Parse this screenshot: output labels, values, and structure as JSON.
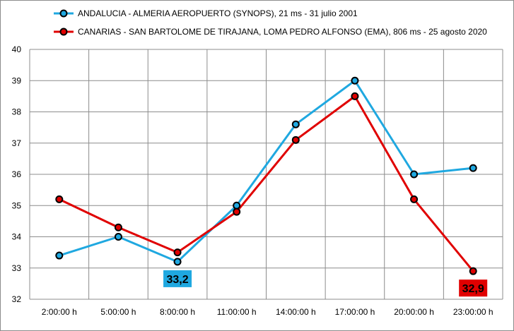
{
  "chart_data": {
    "type": "line",
    "categories": [
      "2:00:00 h",
      "5:00:00 h",
      "8:00:00 h",
      "11:00:00 h",
      "14:00:00 h",
      "17:00:00 h",
      "20:00:00 h",
      "23:00:00 h"
    ],
    "ylim": [
      32,
      40
    ],
    "yticks": [
      "32",
      "33",
      "34",
      "35",
      "36",
      "37",
      "38",
      "39",
      "40"
    ],
    "grid": true,
    "legend_position": "top",
    "series": [
      {
        "name": "ANDALUCIA - ALMERIA AEROPUERTO (SYNOPS), 21 ms - 31 julio 2001",
        "color": "#1fa8e0",
        "values": [
          33.4,
          34.0,
          33.2,
          35.0,
          37.6,
          39.0,
          36.0,
          36.2
        ]
      },
      {
        "name": "CANARIAS - SAN BARTOLOME DE TIRAJANA, LOMA PEDRO ALFONSO (EMA), 806 ms - 25 agosto 2020",
        "color": "#e00000",
        "values": [
          35.2,
          34.3,
          33.5,
          34.8,
          37.1,
          38.5,
          35.2,
          32.9
        ]
      }
    ],
    "annotations": [
      {
        "text": "33,2",
        "series": 0,
        "category_index": 2,
        "box_color": "#1fa8e0"
      },
      {
        "text": "32,9",
        "series": 1,
        "category_index": 7,
        "box_color": "#e00000"
      }
    ]
  }
}
